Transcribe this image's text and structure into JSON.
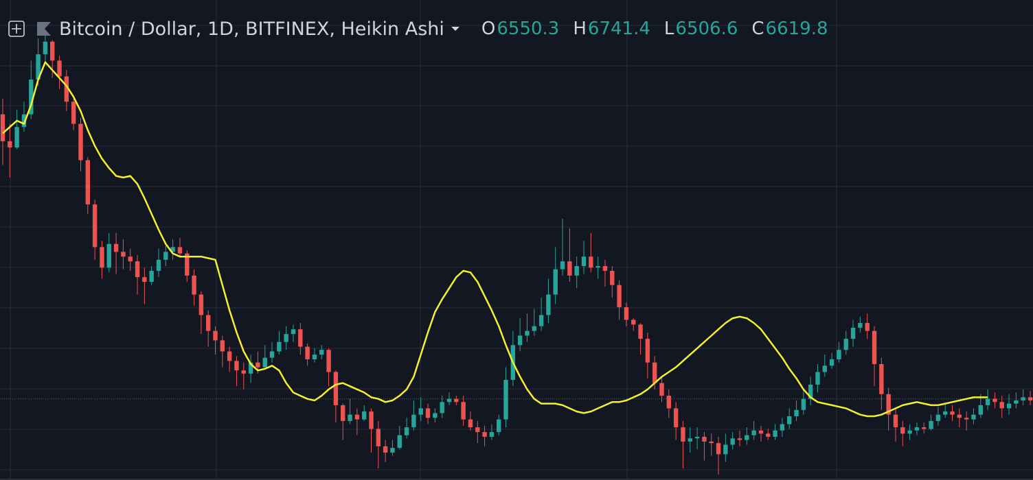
{
  "legend": {
    "symbol": "Bitcoin / Dollar, 1D, BITFINEX, Heikin Ashi",
    "o_label": "O",
    "o_value": "6550.3",
    "h_label": "H",
    "h_value": "6741.4",
    "l_label": "L",
    "l_value": "6506.6",
    "c_label": "C",
    "c_value": "6619.8",
    "icons": {
      "add": "add-indicator-icon",
      "flag": "flag-icon",
      "menu": "dropdown-caret-icon"
    }
  },
  "colors": {
    "background": "#131722",
    "grid": "#2a2e39",
    "up": "#26a69a",
    "down": "#ef5350",
    "ma": "#f5f12f",
    "last_price_line": "#2e7d70",
    "text": "#d1d4dc"
  },
  "chart_data": {
    "type": "candlestick",
    "series": [
      {
        "name": "Heikin Ashi",
        "candles": [
          [
            7620,
            7450,
            7720,
            7300
          ],
          [
            7450,
            7410,
            7560,
            7220
          ],
          [
            7410,
            7540,
            7650,
            7400
          ],
          [
            7540,
            7620,
            7700,
            7510
          ],
          [
            7620,
            7840,
            7960,
            7590
          ],
          [
            7840,
            8000,
            8100,
            7800
          ],
          [
            8000,
            8080,
            8130,
            7950
          ],
          [
            8080,
            7960,
            8090,
            7850
          ],
          [
            7960,
            7860,
            7990,
            7780
          ],
          [
            7860,
            7700,
            7900,
            7640
          ],
          [
            7700,
            7560,
            7720,
            7520
          ],
          [
            7560,
            7330,
            7600,
            7260
          ],
          [
            7330,
            7050,
            7350,
            6990
          ],
          [
            7050,
            6780,
            7080,
            6700
          ],
          [
            6780,
            6650,
            6820,
            6580
          ],
          [
            6650,
            6800,
            6870,
            6620
          ],
          [
            6800,
            6750,
            6870,
            6610
          ],
          [
            6750,
            6720,
            6830,
            6640
          ],
          [
            6720,
            6690,
            6770,
            6630
          ],
          [
            6690,
            6590,
            6730,
            6480
          ],
          [
            6590,
            6560,
            6650,
            6420
          ],
          [
            6560,
            6630,
            6660,
            6540
          ],
          [
            6630,
            6700,
            6770,
            6590
          ],
          [
            6700,
            6750,
            6790,
            6660
          ],
          [
            6750,
            6780,
            6830,
            6700
          ],
          [
            6780,
            6740,
            6840,
            6720
          ],
          [
            6740,
            6600,
            6760,
            6560
          ],
          [
            6600,
            6480,
            6640,
            6410
          ],
          [
            6480,
            6350,
            6500,
            6230
          ],
          [
            6350,
            6250,
            6380,
            6150
          ],
          [
            6250,
            6190,
            6280,
            6100
          ],
          [
            6190,
            6120,
            6220,
            6020
          ],
          [
            6120,
            6060,
            6150,
            5990
          ],
          [
            6060,
            6000,
            6090,
            5900
          ],
          [
            6000,
            5980,
            6050,
            5880
          ],
          [
            5980,
            6050,
            6100,
            5920
          ],
          [
            6050,
            6020,
            6120,
            5980
          ],
          [
            6020,
            6080,
            6160,
            6010
          ],
          [
            6080,
            6120,
            6180,
            6050
          ],
          [
            6120,
            6180,
            6250,
            6100
          ],
          [
            6180,
            6230,
            6280,
            6130
          ],
          [
            6230,
            6260,
            6290,
            6180
          ],
          [
            6260,
            6150,
            6300,
            6100
          ],
          [
            6150,
            6070,
            6170,
            6030
          ],
          [
            6070,
            6100,
            6140,
            6050
          ],
          [
            6100,
            6130,
            6160,
            6070
          ],
          [
            6130,
            5990,
            6140,
            5900
          ],
          [
            5990,
            5780,
            6000,
            5670
          ],
          [
            5780,
            5680,
            5790,
            5560
          ],
          [
            5680,
            5720,
            5820,
            5660
          ],
          [
            5720,
            5690,
            5760,
            5590
          ],
          [
            5690,
            5740,
            5780,
            5680
          ],
          [
            5740,
            5630,
            5760,
            5480
          ],
          [
            5630,
            5520,
            5680,
            5380
          ],
          [
            5520,
            5480,
            5560,
            5420
          ],
          [
            5480,
            5510,
            5560,
            5460
          ],
          [
            5510,
            5590,
            5650,
            5500
          ],
          [
            5590,
            5640,
            5700,
            5570
          ],
          [
            5640,
            5720,
            5810,
            5620
          ],
          [
            5720,
            5760,
            5830,
            5680
          ],
          [
            5760,
            5700,
            5790,
            5660
          ],
          [
            5700,
            5730,
            5760,
            5670
          ],
          [
            5730,
            5800,
            5840,
            5700
          ],
          [
            5800,
            5820,
            5860,
            5780
          ],
          [
            5820,
            5800,
            5840,
            5780
          ],
          [
            5800,
            5690,
            5840,
            5650
          ],
          [
            5690,
            5640,
            5740,
            5620
          ],
          [
            5640,
            5610,
            5680,
            5540
          ],
          [
            5610,
            5580,
            5650,
            5520
          ],
          [
            5580,
            5610,
            5660,
            5560
          ],
          [
            5610,
            5690,
            5720,
            5590
          ],
          [
            5690,
            5940,
            6020,
            5640
          ],
          [
            5940,
            6160,
            6250,
            5900
          ],
          [
            6160,
            6220,
            6330,
            6120
          ],
          [
            6220,
            6250,
            6360,
            6180
          ],
          [
            6250,
            6280,
            6390,
            6220
          ],
          [
            6280,
            6350,
            6460,
            6250
          ],
          [
            6350,
            6480,
            6580,
            6300
          ],
          [
            6480,
            6640,
            6780,
            6420
          ],
          [
            6640,
            6690,
            6960,
            6600
          ],
          [
            6690,
            6600,
            6900,
            6560
          ],
          [
            6600,
            6660,
            6720,
            6520
          ],
          [
            6660,
            6720,
            6820,
            6610
          ],
          [
            6720,
            6650,
            6870,
            6620
          ],
          [
            6650,
            6660,
            6720,
            6580
          ],
          [
            6660,
            6630,
            6700,
            6530
          ],
          [
            6630,
            6540,
            6660,
            6460
          ],
          [
            6540,
            6400,
            6570,
            6320
          ],
          [
            6400,
            6320,
            6430,
            6280
          ],
          [
            6320,
            6290,
            6330,
            6250
          ],
          [
            6290,
            6200,
            6300,
            6100
          ],
          [
            6200,
            6050,
            6240,
            5950
          ],
          [
            6050,
            5920,
            6090,
            5880
          ],
          [
            5920,
            5840,
            5960,
            5800
          ],
          [
            5840,
            5760,
            5880,
            5700
          ],
          [
            5760,
            5640,
            5800,
            5560
          ],
          [
            5640,
            5550,
            5680,
            5380
          ],
          [
            5550,
            5570,
            5640,
            5480
          ],
          [
            5570,
            5580,
            5640,
            5500
          ],
          [
            5580,
            5550,
            5610,
            5430
          ],
          [
            5550,
            5540,
            5600,
            5460
          ],
          [
            5540,
            5470,
            5580,
            5340
          ],
          [
            5470,
            5530,
            5600,
            5420
          ],
          [
            5530,
            5570,
            5610,
            5500
          ],
          [
            5570,
            5560,
            5620,
            5520
          ],
          [
            5560,
            5590,
            5640,
            5530
          ],
          [
            5590,
            5620,
            5680,
            5560
          ],
          [
            5620,
            5600,
            5650,
            5550
          ],
          [
            5600,
            5580,
            5630,
            5560
          ],
          [
            5580,
            5620,
            5660,
            5560
          ],
          [
            5620,
            5660,
            5700,
            5580
          ],
          [
            5660,
            5710,
            5760,
            5630
          ],
          [
            5710,
            5750,
            5810,
            5680
          ],
          [
            5750,
            5820,
            5880,
            5720
          ],
          [
            5820,
            5910,
            5960,
            5780
          ],
          [
            5910,
            5990,
            6040,
            5860
          ],
          [
            5990,
            6030,
            6100,
            5960
          ],
          [
            6030,
            6070,
            6110,
            6010
          ],
          [
            6070,
            6130,
            6180,
            6050
          ],
          [
            6130,
            6200,
            6250,
            6100
          ],
          [
            6200,
            6270,
            6320,
            6150
          ],
          [
            6270,
            6300,
            6340,
            6240
          ],
          [
            6300,
            6250,
            6360,
            6200
          ],
          [
            6250,
            6040,
            6280,
            5900
          ],
          [
            6040,
            5850,
            6080,
            5750
          ],
          [
            5850,
            5720,
            5890,
            5620
          ],
          [
            5720,
            5640,
            5760,
            5550
          ],
          [
            5640,
            5600,
            5680,
            5520
          ],
          [
            5600,
            5620,
            5660,
            5560
          ],
          [
            5620,
            5640,
            5670,
            5590
          ],
          [
            5640,
            5630,
            5670,
            5600
          ],
          [
            5630,
            5680,
            5720,
            5620
          ],
          [
            5680,
            5720,
            5770,
            5650
          ],
          [
            5720,
            5740,
            5790,
            5700
          ],
          [
            5740,
            5720,
            5780,
            5680
          ],
          [
            5720,
            5700,
            5760,
            5640
          ],
          [
            5700,
            5690,
            5740,
            5620
          ],
          [
            5690,
            5720,
            5760,
            5660
          ],
          [
            5720,
            5780,
            5850,
            5700
          ],
          [
            5780,
            5820,
            5880,
            5750
          ],
          [
            5820,
            5800,
            5860,
            5760
          ],
          [
            5800,
            5760,
            5840,
            5700
          ],
          [
            5760,
            5790,
            5850,
            5720
          ],
          [
            5790,
            5810,
            5860,
            5760
          ],
          [
            5810,
            5830,
            5880,
            5780
          ],
          [
            5830,
            5810,
            5870,
            5780
          ]
        ]
      },
      {
        "name": "MA",
        "values": [
          7500,
          7540,
          7580,
          7560,
          7680,
          7840,
          7950,
          7900,
          7850,
          7800,
          7730,
          7640,
          7520,
          7420,
          7340,
          7280,
          7230,
          7220,
          7230,
          7180,
          7090,
          6990,
          6890,
          6800,
          6740,
          6720,
          6720,
          6720,
          6720,
          6710,
          6700,
          6540,
          6380,
          6240,
          6120,
          6040,
          6000,
          6010,
          6030,
          6000,
          5920,
          5860,
          5840,
          5820,
          5810,
          5840,
          5880,
          5910,
          5920,
          5900,
          5880,
          5860,
          5830,
          5820,
          5800,
          5810,
          5840,
          5880,
          5960,
          6100,
          6240,
          6370,
          6450,
          6520,
          6590,
          6630,
          6620,
          6560,
          6470,
          6380,
          6280,
          6160,
          6050,
          5960,
          5880,
          5820,
          5790,
          5790,
          5790,
          5780,
          5760,
          5740,
          5730,
          5740,
          5760,
          5780,
          5800,
          5800,
          5810,
          5830,
          5850,
          5880,
          5920,
          5960,
          5990,
          6020,
          6060,
          6100,
          6140,
          6180,
          6220,
          6260,
          6300,
          6330,
          6340,
          6330,
          6300,
          6260,
          6200,
          6140,
          6080,
          6010,
          5950,
          5880,
          5830,
          5800,
          5790,
          5780,
          5770,
          5760,
          5740,
          5720,
          5710,
          5710,
          5720,
          5740,
          5760,
          5780,
          5790,
          5800,
          5790,
          5780,
          5780,
          5790,
          5800,
          5810,
          5820,
          5830,
          5830,
          5830
        ]
      }
    ],
    "last_price": 5820,
    "ylim": [
      5350,
      8300
    ],
    "grid": true,
    "title": "",
    "xlabel": "",
    "ylabel": ""
  }
}
